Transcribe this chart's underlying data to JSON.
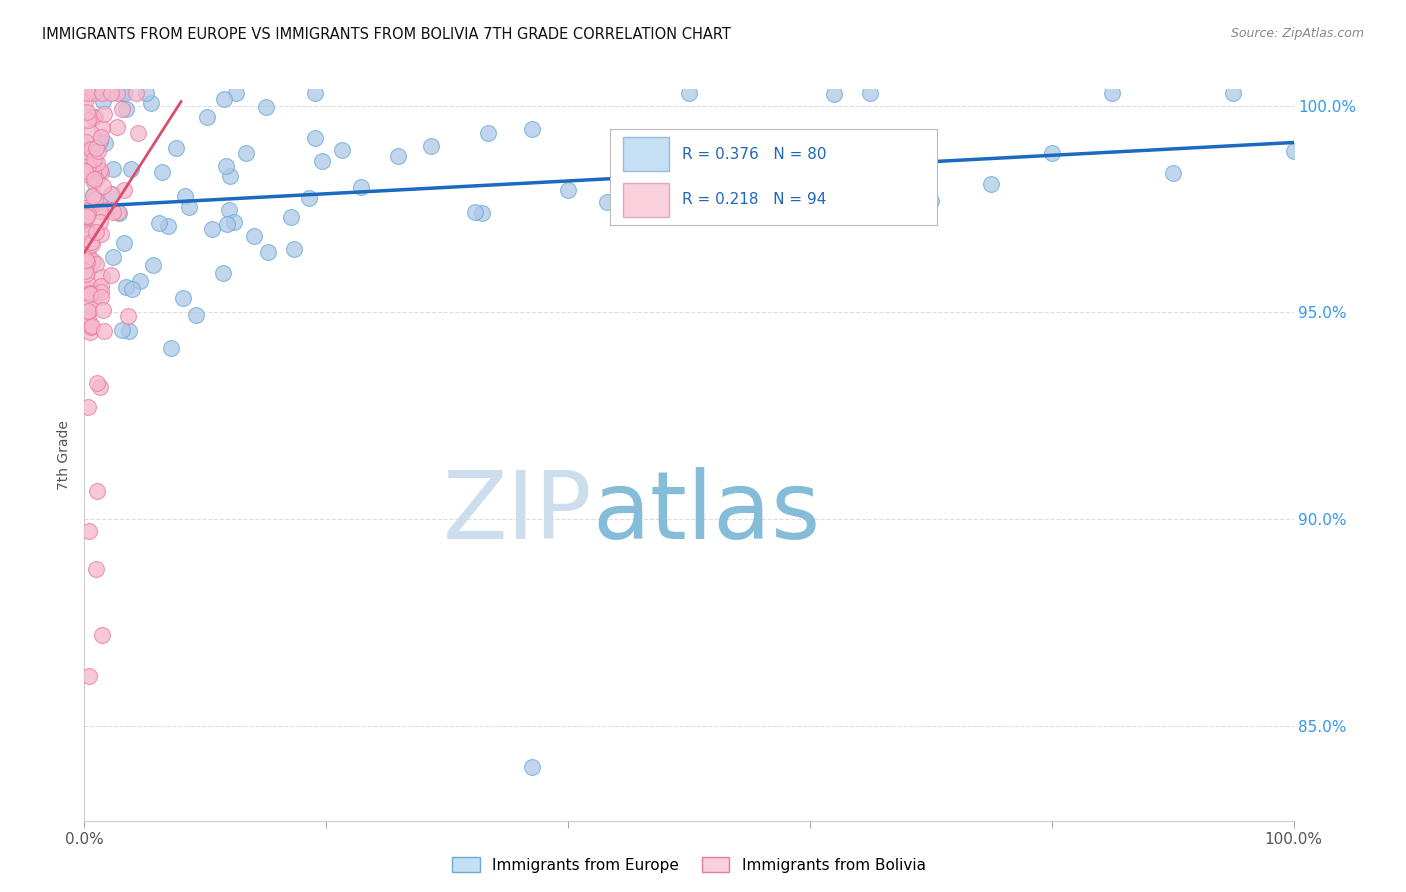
{
  "title": "IMMIGRANTS FROM EUROPE VS IMMIGRANTS FROM BOLIVIA 7TH GRADE CORRELATION CHART",
  "source_text": "Source: ZipAtlas.com",
  "ylabel": "7th Grade",
  "x_min": 0.0,
  "x_max": 1.0,
  "y_min": 0.827,
  "y_max": 1.004,
  "y_ticks": [
    0.85,
    0.9,
    0.95,
    1.0
  ],
  "y_tick_labels": [
    "85.0%",
    "90.0%",
    "95.0%",
    "100.0%"
  ],
  "europe_R": 0.376,
  "europe_N": 80,
  "bolivia_R": 0.218,
  "bolivia_N": 94,
  "europe_color": "#adc8e8",
  "europe_edge_color": "#6aaad4",
  "bolivia_color": "#f5b8cc",
  "bolivia_edge_color": "#e87ca0",
  "europe_trend_color": "#1a6bbf",
  "bolivia_trend_color": "#d94f6e",
  "legend_europe_color": "#c5dff5",
  "legend_bolivia_color": "#fad0dc",
  "watermark_zip_color": "#c8dff0",
  "watermark_atlas_color": "#90bedd",
  "title_color": "#111111",
  "source_color": "#888888",
  "right_axis_color": "#3399ee",
  "grid_color": "#dddddd",
  "axis_color": "#cccccc"
}
